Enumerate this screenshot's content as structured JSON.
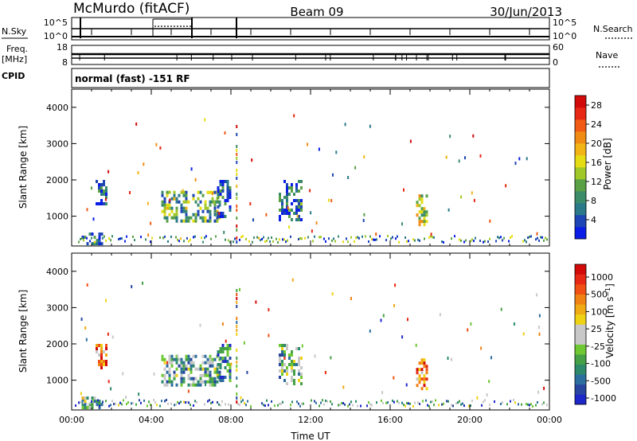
{
  "header": {
    "station": "McMurdo (fitACF)",
    "beam": "Beam 09",
    "date": "30/Jun/2013"
  },
  "strips": {
    "nsky_label": "N.Sky",
    "nsearch_label": "N.Search",
    "freq_label_line1": "Freq.",
    "freq_label_line2": "[MHz]",
    "nave_label": "Nave",
    "cpid_label": "CPID",
    "cpid_value": "normal (fast) -151 RF",
    "nsky_ticks": [
      "10^5",
      "10^0"
    ],
    "nsearch_ticks": [
      "10^5",
      "10^0"
    ],
    "freq_ticks": [
      "18",
      "8"
    ],
    "nave_ticks": [
      "60",
      "0"
    ]
  },
  "chart_data": [
    {
      "type": "heatmap",
      "title": "",
      "xlabel": "",
      "ylabel": "Slant Range [km]",
      "xlim": [
        0,
        24
      ],
      "ylim": [
        180,
        4500
      ],
      "y_ticks": [
        "1000",
        "2000",
        "3000",
        "4000"
      ],
      "colorbar": {
        "label": "Power [dB]",
        "ticks": [
          "4",
          "8",
          "12",
          "16",
          "20",
          "24",
          "28"
        ],
        "colors": [
          "#0a1ee6",
          "#1e46b4",
          "#2a7a8a",
          "#3c8c6a",
          "#5aa046",
          "#a0c828",
          "#e6dc14",
          "#f0b414",
          "#f08c14",
          "#f05a14",
          "#e62814",
          "#d20a0a"
        ]
      },
      "echo_regions": [
        {
          "t_start": 1.2,
          "t_end": 1.8,
          "r_start": 1300,
          "r_end": 2000,
          "level": 0.15
        },
        {
          "t_start": 4.5,
          "t_end": 7.4,
          "r_start": 900,
          "r_end": 1700,
          "level": 0.35
        },
        {
          "t_start": 10.4,
          "t_end": 11.5,
          "r_start": 900,
          "r_end": 2000,
          "level": 0.2
        },
        {
          "t_start": 17.3,
          "t_end": 17.8,
          "r_start": 800,
          "r_end": 1600,
          "level": 0.5
        },
        {
          "t_start": 0.5,
          "t_end": 1.5,
          "r_start": 200,
          "r_end": 550,
          "level": 0.15
        },
        {
          "t_start": 7.3,
          "t_end": 8.0,
          "r_start": 1000,
          "r_end": 2000,
          "level": 0.15
        }
      ]
    },
    {
      "type": "heatmap",
      "title": "",
      "xlabel": "Time UT",
      "ylabel": "Slant Range [km]",
      "xlim": [
        0,
        24
      ],
      "ylim": [
        180,
        4500
      ],
      "x_ticks": [
        "00:00",
        "04:00",
        "08:00",
        "12:00",
        "16:00",
        "20:00",
        "00:00"
      ],
      "y_ticks": [
        "1000",
        "2000",
        "3000",
        "4000"
      ],
      "colorbar": {
        "label": "Velocity [m s^-1]",
        "ticks": [
          "1000",
          "500",
          "100",
          "25",
          "-25",
          "-100",
          "-500",
          "-1000"
        ],
        "colors": [
          "#1e28c8",
          "#2846a0",
          "#2c6e9e",
          "#2e8a6a",
          "#46a046",
          "#6ec832",
          "#c8c8c8",
          "#c8c8c8",
          "#f0d214",
          "#f0aa14",
          "#f08214",
          "#f05014",
          "#e62814",
          "#d20a0a"
        ]
      },
      "echo_regions": [
        {
          "t_start": 1.2,
          "t_end": 1.8,
          "r_start": 1300,
          "r_end": 2000,
          "level": 0.8
        },
        {
          "t_start": 4.5,
          "t_end": 7.4,
          "r_start": 900,
          "r_end": 1700,
          "level": 0.35
        },
        {
          "t_start": 10.4,
          "t_end": 11.5,
          "r_start": 900,
          "r_end": 2000,
          "level": 0.35
        },
        {
          "t_start": 17.3,
          "t_end": 17.8,
          "r_start": 800,
          "r_end": 1600,
          "level": 0.8
        },
        {
          "t_start": 0.5,
          "t_end": 1.5,
          "r_start": 200,
          "r_end": 550,
          "level": 0.4
        },
        {
          "t_start": 7.3,
          "t_end": 8.0,
          "r_start": 1000,
          "r_end": 2000,
          "level": 0.2
        }
      ]
    }
  ]
}
